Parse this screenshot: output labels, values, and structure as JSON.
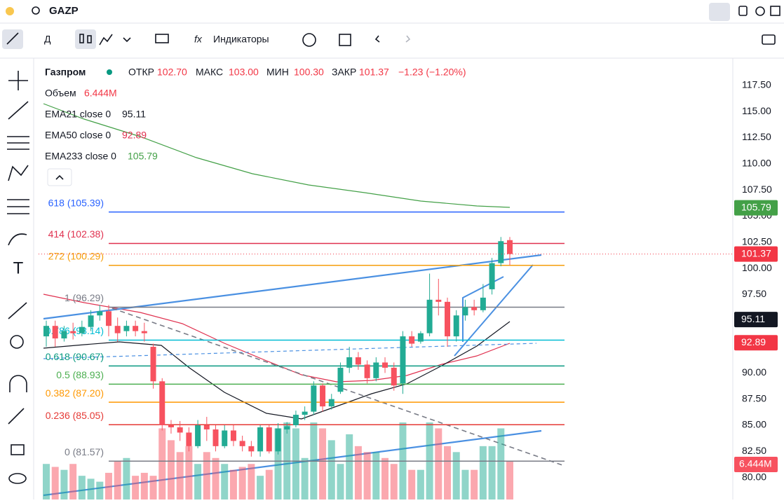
{
  "header": {
    "symbol": "GAZP",
    "interval": "Д",
    "indicators": "Индикаторы"
  },
  "legend": {
    "name": "Газпром",
    "open_label": "ОТКР",
    "open": "102.70",
    "high_label": "МАКС",
    "high": "103.00",
    "low_label": "МИН",
    "low": "100.30",
    "close_label": "ЗАКР",
    "close": "101.37",
    "change": "−1.23 (−1.20%)",
    "volume_label": "Объем",
    "volume": "6.444M",
    "ema21_label": "EMA21 close 0",
    "ema21": "95.11",
    "ema50_label": "EMA50 close 0",
    "ema50": "92.89",
    "ema233_label": "EMA233 close 0",
    "ema233": "105.79"
  },
  "chart_data": {
    "type": "candlestick",
    "ylim": [
      77.9,
      120.1
    ],
    "yticks": [
      {
        "value": 117.5,
        "label": "117.50"
      },
      {
        "value": 115,
        "label": "115.00"
      },
      {
        "value": 112.5,
        "label": "112.50"
      },
      {
        "value": 110,
        "label": "110.00"
      },
      {
        "value": 107.5,
        "label": "107.50"
      },
      {
        "value": 105,
        "label": "105.00"
      },
      {
        "value": 102.5,
        "label": "102.50"
      },
      {
        "value": 100,
        "label": "100.00"
      },
      {
        "value": 97.5,
        "label": "97.50"
      },
      {
        "value": 95,
        "label": "95.00"
      },
      {
        "value": 92.5,
        "label": "92.50"
      },
      {
        "value": 90,
        "label": "90.00"
      },
      {
        "value": 87.5,
        "label": "87.50"
      },
      {
        "value": 85,
        "label": "85.00"
      },
      {
        "value": 82.5,
        "label": "82.50"
      },
      {
        "value": 80,
        "label": "80.00"
      }
    ],
    "open": [
      93.5,
      94.5,
      93.3,
      94,
      93.8,
      94.4,
      95.5,
      95.9,
      94.5,
      94,
      94.5,
      94,
      92.5,
      89.2,
      85,
      84.8,
      84.3,
      83,
      85,
      84.6,
      83,
      84.5,
      83.5,
      83,
      82.5,
      84.8,
      82.5,
      84.6,
      85,
      86,
      86.3,
      88.8,
      86.8,
      88.2,
      90.5,
      91.5,
      90.8,
      89.5,
      91,
      90.5,
      89,
      93.5,
      93,
      93.8,
      97,
      96.8,
      93.5,
      95.5,
      96.3,
      96,
      98,
      100.5,
      102.7
    ],
    "high": [
      95,
      95,
      94.5,
      94.8,
      95,
      96,
      96.5,
      96.5,
      95.3,
      95,
      95,
      94.8,
      92.8,
      89.5,
      85.5,
      85.4,
      84.8,
      85.5,
      85.8,
      85,
      85,
      85,
      84,
      83.5,
      85,
      85,
      85.2,
      85.3,
      86.4,
      86.8,
      89.2,
      89,
      88,
      91,
      92.5,
      92,
      91.2,
      91.5,
      91.5,
      91,
      94,
      94,
      94,
      99.5,
      99,
      97.2,
      96,
      97,
      97,
      98.5,
      101,
      103,
      103
    ],
    "low": [
      92.5,
      92.5,
      93,
      93.2,
      93.5,
      94,
      95,
      93.5,
      93,
      93.5,
      93.5,
      93,
      88.5,
      84.5,
      84.2,
      83.5,
      82.5,
      82.8,
      83.5,
      82.5,
      82.8,
      83,
      82.5,
      82,
      82,
      82.3,
      82.2,
      84.2,
      84.8,
      85.5,
      86,
      86.3,
      86.5,
      88,
      90,
      90.3,
      89,
      89.2,
      90,
      88.3,
      88,
      92.5,
      92.8,
      93.5,
      95.5,
      92.5,
      93,
      95,
      95.5,
      95.8,
      97.5,
      100.2,
      100.3
    ],
    "close": [
      94.5,
      93.3,
      94,
      93.8,
      94.4,
      95.5,
      95.9,
      94.5,
      93.8,
      94.5,
      94,
      93.8,
      89.2,
      85,
      84.8,
      84.3,
      83,
      85,
      84.6,
      83,
      84.5,
      83.5,
      83,
      82.5,
      84.8,
      82.5,
      84.7,
      84.9,
      86,
      86.3,
      88.8,
      86.8,
      87.5,
      90.5,
      91.5,
      90.8,
      89.5,
      91,
      90.5,
      88.8,
      93.5,
      92.8,
      93.8,
      97,
      96.8,
      93.5,
      95.5,
      96.3,
      96,
      97.2,
      100.5,
      102.6,
      101.37
    ],
    "volume": [
      6,
      5.5,
      5,
      6,
      4,
      3.5,
      3,
      4.5,
      6.5,
      7,
      4,
      4.5,
      4,
      12,
      10,
      8,
      9,
      6,
      8,
      7,
      6,
      5,
      5.5,
      6,
      4,
      5,
      12,
      13,
      12,
      7,
      13,
      12,
      10,
      6,
      11,
      9,
      8,
      8,
      7,
      6,
      13,
      5,
      5,
      13,
      12,
      9,
      8,
      5,
      5,
      9,
      9,
      12,
      6.444
    ],
    "fib_levels": [
      {
        "value": 105.39,
        "label": "618 (105.39)",
        "color": "#2962ff"
      },
      {
        "value": 102.38,
        "label": "414 (102.38)",
        "color": "#e0314f"
      },
      {
        "value": 100.29,
        "label": "272 (100.29)",
        "color": "#f59e0b"
      },
      {
        "value": 96.29,
        "label": "1 (96.29)",
        "color": "#787b86"
      },
      {
        "value": 93.14,
        "label": "0.786 (93.14)",
        "color": "#00bcd4"
      },
      {
        "value": 90.67,
        "label": "0.618 (90.67)",
        "color": "#089981"
      },
      {
        "value": 88.93,
        "label": "0.5 (88.93)",
        "color": "#4caf50"
      },
      {
        "value": 87.2,
        "label": "0.382 (87.20)",
        "color": "#ff9800"
      },
      {
        "value": 85.05,
        "label": "0.236 (85.05)",
        "color": "#e53935"
      },
      {
        "value": 81.57,
        "label": "0 (81.57)",
        "color": "#787b86"
      }
    ],
    "badges": [
      {
        "value": 105.79,
        "label": "105.79",
        "color": "#43a047"
      },
      {
        "value": 101.37,
        "label": "101.37",
        "color": "#f23645"
      },
      {
        "value": 95.11,
        "label": "95.11",
        "color": "#131722"
      },
      {
        "value": 92.89,
        "label": "92.89",
        "color": "#f23645"
      }
    ],
    "volume_badge": "6.444M",
    "up_color": "#22ab94",
    "down_color": "#f7525f"
  }
}
